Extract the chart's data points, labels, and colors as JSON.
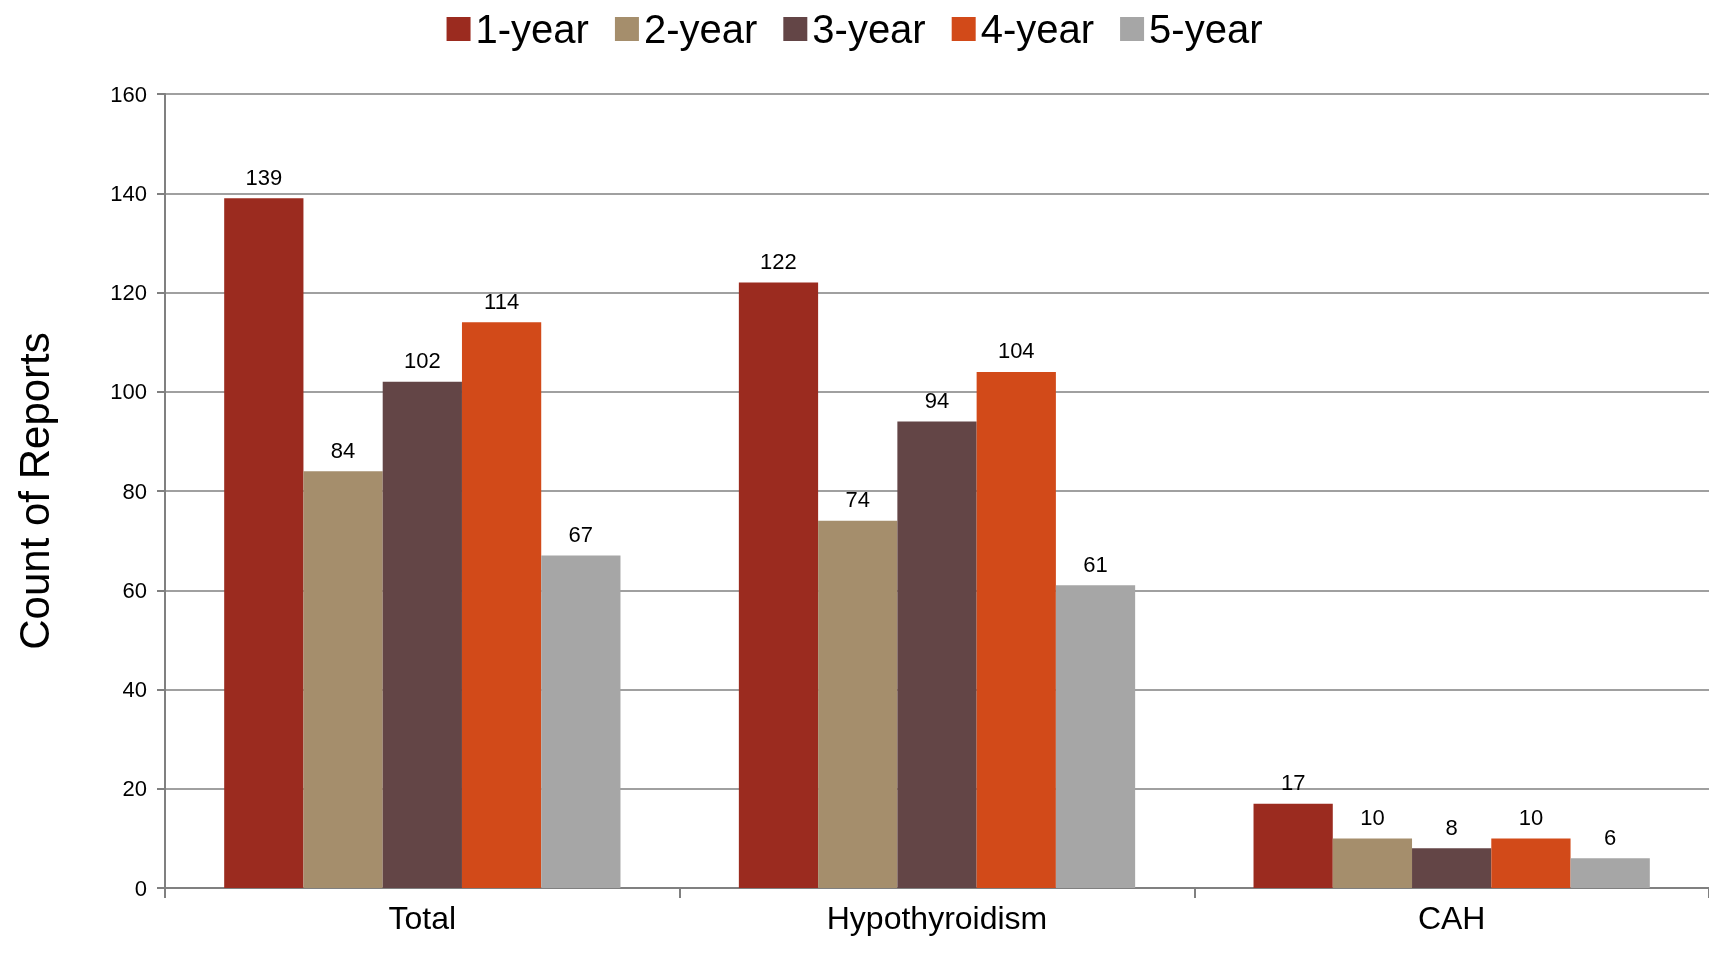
{
  "chart_data": {
    "type": "bar",
    "ylabel": "Count of Reports",
    "categories": [
      "Total",
      "Hypothyroidism",
      "CAH"
    ],
    "series": [
      {
        "name": "1-year",
        "color": "#9b2b1f",
        "values": [
          139,
          122,
          17
        ]
      },
      {
        "name": "2-year",
        "color": "#a58e6c",
        "values": [
          84,
          74,
          10
        ]
      },
      {
        "name": "3-year",
        "color": "#634546",
        "values": [
          102,
          94,
          8
        ]
      },
      {
        "name": "4-year",
        "color": "#d24a19",
        "values": [
          114,
          104,
          10
        ]
      },
      {
        "name": "5-year",
        "color": "#a6a6a6",
        "values": [
          67,
          61,
          6
        ]
      }
    ],
    "ylim": [
      0,
      160
    ],
    "yticks": [
      0,
      20,
      40,
      60,
      80,
      100,
      120,
      140,
      160
    ],
    "grid": "y",
    "legend": "top",
    "data_labels": true
  }
}
